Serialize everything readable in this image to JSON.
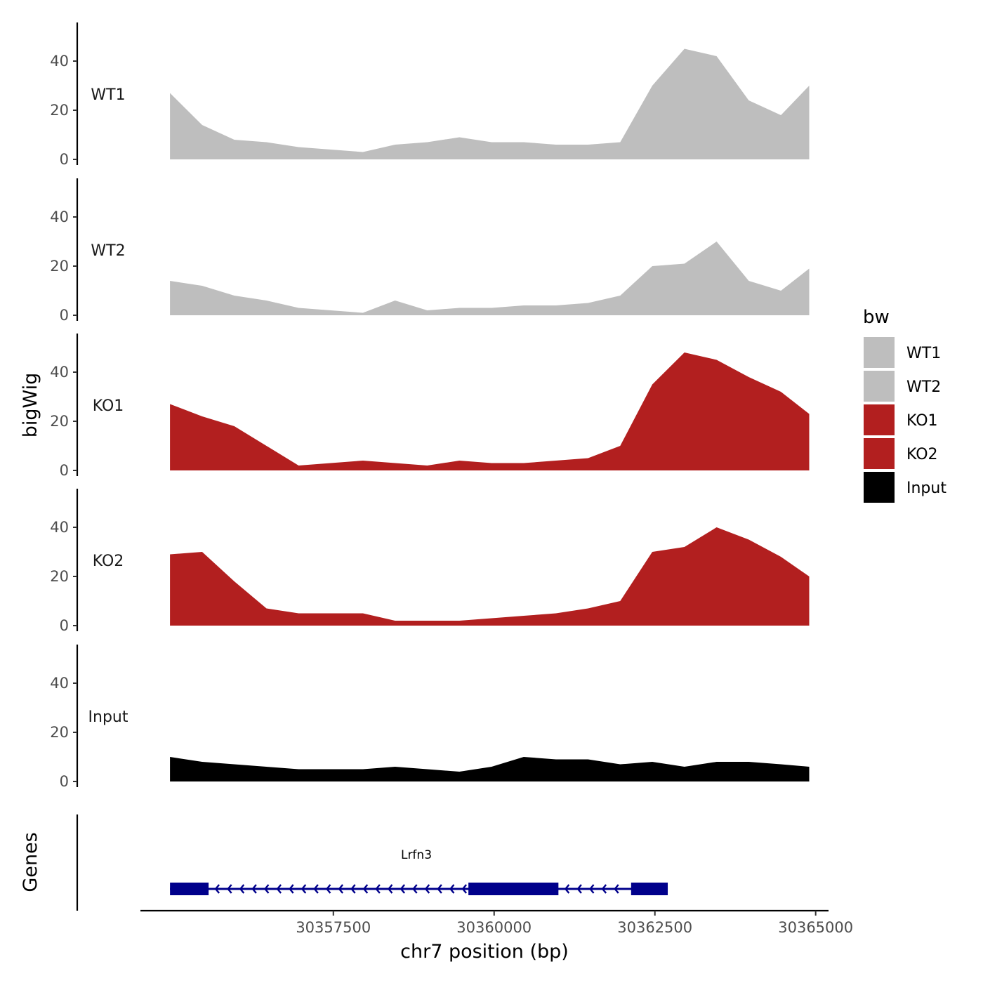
{
  "chart_data": {
    "type": "area",
    "title": "",
    "xlabel": "chr7 position (bp)",
    "ylabel": "bigWig",
    "genes_label": "Genes",
    "xlim": [
      30354500,
      30365200
    ],
    "ylim": [
      0,
      55
    ],
    "x_ticks": [
      30357500,
      30360000,
      30362500,
      30365000
    ],
    "x_tick_labels": [
      "30357500",
      "30360000",
      "30362500",
      "30365000"
    ],
    "y_ticks": [
      0,
      20,
      40
    ],
    "y_tick_labels": [
      "0",
      "20",
      "40"
    ],
    "legend": {
      "title": "bw",
      "entries": [
        {
          "label": "WT1",
          "color": "#bebebe"
        },
        {
          "label": "WT2",
          "color": "#bebebe"
        },
        {
          "label": "KO1",
          "color": "#b21f1f"
        },
        {
          "label": "KO2",
          "color": "#b21f1f"
        },
        {
          "label": "Input",
          "color": "#000000"
        }
      ]
    },
    "x": [
      30354960,
      30355460,
      30355960,
      30356460,
      30356960,
      30357460,
      30357960,
      30358460,
      30358960,
      30359460,
      30359960,
      30360460,
      30360960,
      30361460,
      30361960,
      30362460,
      30362960,
      30363460,
      30363960,
      30364460,
      30364900
    ],
    "series": [
      {
        "name": "WT1",
        "color": "#bebebe",
        "values": [
          27,
          14,
          8,
          7,
          5,
          4,
          3,
          6,
          7,
          9,
          7,
          7,
          6,
          6,
          7,
          30,
          45,
          42,
          24,
          18,
          30
        ]
      },
      {
        "name": "WT2",
        "color": "#bebebe",
        "values": [
          14,
          12,
          8,
          6,
          3,
          2,
          1,
          6,
          2,
          3,
          3,
          4,
          4,
          5,
          8,
          20,
          21,
          30,
          14,
          10,
          19
        ]
      },
      {
        "name": "KO1",
        "color": "#b21f1f",
        "values": [
          27,
          22,
          18,
          10,
          2,
          3,
          4,
          3,
          2,
          4,
          3,
          3,
          4,
          5,
          10,
          35,
          48,
          45,
          38,
          32,
          23
        ]
      },
      {
        "name": "KO2",
        "color": "#b21f1f",
        "values": [
          29,
          30,
          18,
          7,
          5,
          5,
          5,
          2,
          2,
          2,
          3,
          4,
          5,
          7,
          10,
          30,
          32,
          40,
          35,
          28,
          20
        ]
      },
      {
        "name": "Input",
        "color": "#000000",
        "values": [
          10,
          8,
          7,
          6,
          5,
          5,
          5,
          6,
          5,
          4,
          6,
          10,
          9,
          9,
          7,
          8,
          6,
          8,
          8,
          7,
          6
        ]
      }
    ],
    "gene": {
      "name": "Lrfn3",
      "strand": "-",
      "color": "#00008b",
      "start": 30354960,
      "end": 30362700,
      "exons": [
        [
          30354960,
          30355560
        ],
        [
          30359600,
          30361000
        ],
        [
          30362130,
          30362700
        ]
      ]
    }
  }
}
